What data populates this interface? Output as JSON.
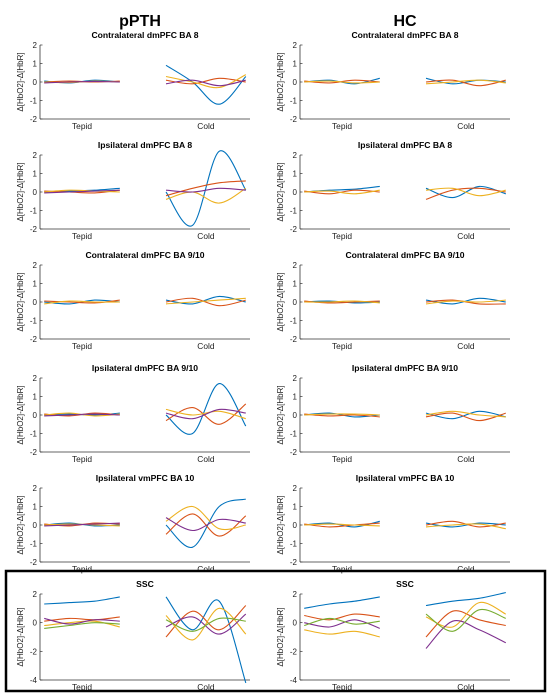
{
  "figure": {
    "column_titles": [
      "pPTH",
      "HC"
    ],
    "highlight_box_rows": [
      5
    ],
    "series_colors": [
      "#0072BD",
      "#D95319",
      "#EDB120",
      "#7E2F8E",
      "#77AC30",
      "#4DBEEE",
      "#A2142F",
      "#1fb59a"
    ]
  },
  "chart_data": [
    {
      "type": "line",
      "title": "Contralateral dmPFC BA 8",
      "ylabel": "Δ[HbO2]-Δ[HbR]",
      "categories": [
        "Tepid",
        "Cold"
      ],
      "ylim": [
        -2,
        2
      ],
      "yticks": [
        -2,
        -1,
        0,
        1,
        2
      ],
      "grid": false,
      "series": [
        {
          "values": {
            "Tepid": [
              0.05,
              -0.05,
              0.1,
              0.0
            ],
            "Cold": [
              0.9,
              0.0,
              -1.2,
              0.3
            ]
          }
        },
        {
          "values": {
            "Tepid": [
              0.0,
              0.05,
              0.0,
              0.05
            ],
            "Cold": [
              0.1,
              -0.1,
              0.2,
              0.0
            ]
          }
        },
        {
          "values": {
            "Tepid": [
              0.0,
              -0.03,
              0.05,
              0.0
            ],
            "Cold": [
              0.3,
              0.0,
              -0.3,
              0.4
            ]
          }
        },
        {
          "values": {
            "Tepid": [
              -0.05,
              0.0,
              0.03,
              0.0
            ],
            "Cold": [
              -0.1,
              0.1,
              -0.2,
              0.1
            ]
          }
        }
      ]
    },
    {
      "type": "line",
      "title": "Contralateral dmPFC BA 8",
      "ylabel": "Δ[HbO2]-Δ[HbR]",
      "categories": [
        "Tepid",
        "Cold"
      ],
      "ylim": [
        -2,
        2
      ],
      "yticks": [
        -2,
        -1,
        0,
        1,
        2
      ],
      "grid": false,
      "series": [
        {
          "values": {
            "Tepid": [
              0.0,
              0.1,
              -0.1,
              0.2
            ],
            "Cold": [
              0.2,
              -0.1,
              0.1,
              0.0
            ]
          }
        },
        {
          "values": {
            "Tepid": [
              0.05,
              -0.05,
              0.1,
              0.0
            ],
            "Cold": [
              0.0,
              0.1,
              -0.2,
              0.1
            ]
          }
        },
        {
          "values": {
            "Tepid": [
              0.0,
              0.05,
              -0.05,
              0.0
            ],
            "Cold": [
              -0.1,
              0.0,
              0.1,
              -0.05
            ]
          }
        }
      ]
    },
    {
      "type": "line",
      "title": "Ipsilateral dmPFC BA 8",
      "ylabel": "Δ[HbO2]-Δ[HbR]",
      "categories": [
        "Tepid",
        "Cold"
      ],
      "ylim": [
        -2,
        2
      ],
      "yticks": [
        -2,
        -1,
        0,
        1,
        2
      ],
      "grid": false,
      "series": [
        {
          "values": {
            "Tepid": [
              0.0,
              0.05,
              0.1,
              0.2
            ],
            "Cold": [
              0.0,
              -1.8,
              2.2,
              0.1
            ]
          }
        },
        {
          "values": {
            "Tepid": [
              0.05,
              0.0,
              -0.05,
              0.1
            ],
            "Cold": [
              -0.2,
              0.2,
              0.5,
              0.6
            ]
          }
        },
        {
          "values": {
            "Tepid": [
              0.0,
              0.1,
              0.05,
              0.0
            ],
            "Cold": [
              -0.4,
              0.0,
              -0.6,
              0.2
            ]
          }
        },
        {
          "values": {
            "Tepid": [
              -0.05,
              0.0,
              0.05,
              0.1
            ],
            "Cold": [
              0.1,
              0.0,
              0.2,
              0.1
            ]
          }
        }
      ]
    },
    {
      "type": "line",
      "title": "Ipsilateral dmPFC BA 8",
      "ylabel": "Δ[HbO2]-Δ[HbR]",
      "categories": [
        "Tepid",
        "Cold"
      ],
      "ylim": [
        -2,
        2
      ],
      "yticks": [
        -2,
        -1,
        0,
        1,
        2
      ],
      "grid": false,
      "series": [
        {
          "values": {
            "Tepid": [
              0.0,
              0.1,
              0.15,
              0.3
            ],
            "Cold": [
              0.2,
              -0.3,
              0.3,
              -0.1
            ]
          }
        },
        {
          "values": {
            "Tepid": [
              0.05,
              -0.1,
              0.1,
              0.0
            ],
            "Cold": [
              -0.4,
              0.1,
              0.2,
              0.0
            ]
          }
        },
        {
          "values": {
            "Tepid": [
              0.0,
              0.05,
              -0.1,
              0.1
            ],
            "Cold": [
              0.1,
              0.2,
              -0.2,
              0.1
            ]
          }
        }
      ]
    },
    {
      "type": "line",
      "title": "Contralateral dmPFC BA 9/10",
      "ylabel": "Δ[HbO2]-Δ[HbR]",
      "categories": [
        "Tepid",
        "Cold"
      ],
      "ylim": [
        -2,
        2
      ],
      "yticks": [
        -2,
        -1,
        0,
        1,
        2
      ],
      "grid": false,
      "series": [
        {
          "values": {
            "Tepid": [
              0.0,
              -0.1,
              0.1,
              0.0
            ],
            "Cold": [
              0.1,
              -0.1,
              0.3,
              0.0
            ]
          }
        },
        {
          "values": {
            "Tepid": [
              0.05,
              0.0,
              -0.05,
              0.1
            ],
            "Cold": [
              0.0,
              0.2,
              -0.2,
              0.1
            ]
          }
        },
        {
          "values": {
            "Tepid": [
              -0.1,
              0.05,
              0.0,
              0.0
            ],
            "Cold": [
              -0.1,
              0.0,
              0.1,
              0.2
            ]
          }
        }
      ]
    },
    {
      "type": "line",
      "title": "Contralateral dmPFC BA 9/10",
      "ylabel": "Δ[HbO2]-Δ[HbR]",
      "categories": [
        "Tepid",
        "Cold"
      ],
      "ylim": [
        -2,
        2
      ],
      "yticks": [
        -2,
        -1,
        0,
        1,
        2
      ],
      "grid": false,
      "series": [
        {
          "values": {
            "Tepid": [
              0.0,
              0.05,
              -0.05,
              0.0
            ],
            "Cold": [
              0.1,
              -0.1,
              0.2,
              0.0
            ]
          }
        },
        {
          "values": {
            "Tepid": [
              0.05,
              -0.05,
              0.0,
              0.05
            ],
            "Cold": [
              0.0,
              0.1,
              -0.1,
              -0.1
            ]
          }
        },
        {
          "values": {
            "Tepid": [
              0.0,
              0.0,
              0.05,
              -0.05
            ],
            "Cold": [
              -0.1,
              0.05,
              0.0,
              0.1
            ]
          }
        }
      ]
    },
    {
      "type": "line",
      "title": "Ipsilateral dmPFC BA 9/10",
      "ylabel": "Δ[HbO2]-Δ[HbR]",
      "categories": [
        "Tepid",
        "Cold"
      ],
      "ylim": [
        -2,
        2
      ],
      "yticks": [
        -2,
        -1,
        0,
        1,
        2
      ],
      "grid": false,
      "series": [
        {
          "values": {
            "Tepid": [
              0.0,
              0.05,
              0.0,
              0.1
            ],
            "Cold": [
              0.0,
              -1.0,
              1.7,
              -0.6
            ]
          }
        },
        {
          "values": {
            "Tepid": [
              0.05,
              -0.05,
              0.1,
              0.0
            ],
            "Cold": [
              -0.3,
              0.4,
              -0.5,
              0.6
            ]
          }
        },
        {
          "values": {
            "Tepid": [
              0.0,
              0.1,
              -0.05,
              0.05
            ],
            "Cold": [
              0.3,
              0.0,
              0.2,
              -0.2
            ]
          }
        },
        {
          "values": {
            "Tepid": [
              -0.05,
              0.0,
              0.05,
              0.0
            ],
            "Cold": [
              0.1,
              -0.2,
              0.3,
              0.1
            ]
          }
        }
      ]
    },
    {
      "type": "line",
      "title": "Ipsilateral dmPFC BA 9/10",
      "ylabel": "Δ[HbO2]-Δ[HbR]",
      "categories": [
        "Tepid",
        "Cold"
      ],
      "ylim": [
        -2,
        2
      ],
      "yticks": [
        -2,
        -1,
        0,
        1,
        2
      ],
      "grid": false,
      "series": [
        {
          "values": {
            "Tepid": [
              0.0,
              0.1,
              -0.1,
              0.0
            ],
            "Cold": [
              0.1,
              -0.2,
              0.2,
              -0.1
            ]
          }
        },
        {
          "values": {
            "Tepid": [
              0.05,
              -0.05,
              0.0,
              -0.1
            ],
            "Cold": [
              -0.1,
              0.1,
              -0.3,
              0.1
            ]
          }
        },
        {
          "values": {
            "Tepid": [
              0.0,
              0.05,
              0.05,
              0.0
            ],
            "Cold": [
              0.0,
              0.2,
              0.0,
              -0.1
            ]
          }
        }
      ]
    },
    {
      "type": "line",
      "title": "Ipsilateral vmPFC BA 10",
      "ylabel": "Δ[HbO2]-Δ[HbR]",
      "categories": [
        "Tepid",
        "Cold"
      ],
      "ylim": [
        -2,
        2
      ],
      "yticks": [
        -2,
        -1,
        0,
        1,
        2
      ],
      "grid": false,
      "series": [
        {
          "values": {
            "Tepid": [
              0.0,
              0.1,
              -0.05,
              0.0
            ],
            "Cold": [
              0.0,
              -1.2,
              1.0,
              1.4
            ]
          }
        },
        {
          "values": {
            "Tepid": [
              0.05,
              -0.05,
              0.1,
              0.05
            ],
            "Cold": [
              -0.5,
              0.6,
              -0.6,
              0.5
            ]
          }
        },
        {
          "values": {
            "Tepid": [
              0.0,
              0.05,
              0.0,
              -0.05
            ],
            "Cold": [
              0.2,
              1.0,
              -0.2,
              0.0
            ]
          }
        },
        {
          "values": {
            "Tepid": [
              -0.05,
              0.0,
              0.05,
              0.1
            ],
            "Cold": [
              0.4,
              -0.3,
              0.3,
              0.1
            ]
          }
        }
      ]
    },
    {
      "type": "line",
      "title": "Ipsilateral vmPFC BA 10",
      "ylabel": "Δ[HbO2]-Δ[HbR]",
      "categories": [
        "Tepid",
        "Cold"
      ],
      "ylim": [
        -2,
        2
      ],
      "yticks": [
        -2,
        -1,
        0,
        1,
        2
      ],
      "grid": false,
      "series": [
        {
          "values": {
            "Tepid": [
              0.0,
              0.1,
              -0.1,
              0.2
            ],
            "Cold": [
              0.1,
              -0.1,
              0.1,
              0.0
            ]
          }
        },
        {
          "values": {
            "Tepid": [
              0.05,
              -0.1,
              0.0,
              0.1
            ],
            "Cold": [
              0.0,
              0.2,
              -0.1,
              0.1
            ]
          }
        },
        {
          "values": {
            "Tepid": [
              0.0,
              0.05,
              0.0,
              -0.05
            ],
            "Cold": [
              -0.1,
              0.0,
              0.05,
              -0.2
            ]
          }
        }
      ]
    },
    {
      "type": "line",
      "title": "SSC",
      "ylabel": "Δ[HbO2]-Δ[HbR]",
      "categories": [
        "Tepid",
        "Cold"
      ],
      "ylim": [
        -4,
        2
      ],
      "yticks": [
        -4,
        -2,
        0,
        2
      ],
      "grid": false,
      "series": [
        {
          "values": {
            "Tepid": [
              1.3,
              1.4,
              1.5,
              1.8
            ],
            "Cold": [
              1.8,
              -0.5,
              1.5,
              -4.2
            ]
          }
        },
        {
          "values": {
            "Tepid": [
              0.1,
              0.3,
              0.2,
              0.4
            ],
            "Cold": [
              -1.0,
              0.8,
              -0.5,
              1.2
            ]
          }
        },
        {
          "values": {
            "Tepid": [
              -0.2,
              0.0,
              0.1,
              -0.3
            ],
            "Cold": [
              0.5,
              -1.2,
              1.0,
              -0.8
            ]
          }
        },
        {
          "values": {
            "Tepid": [
              0.3,
              -0.1,
              0.2,
              0.1
            ],
            "Cold": [
              -0.3,
              0.4,
              -0.8,
              0.6
            ]
          }
        },
        {
          "values": {
            "Tepid": [
              -0.4,
              -0.2,
              0.0,
              -0.1
            ],
            "Cold": [
              0.2,
              -0.6,
              0.3,
              0.1
            ]
          }
        }
      ]
    },
    {
      "type": "line",
      "title": "SSC",
      "ylabel": "Δ[HbO2]-Δ[HbR]",
      "categories": [
        "Tepid",
        "Cold"
      ],
      "ylim": [
        -4,
        2
      ],
      "yticks": [
        -4,
        -2,
        0,
        2
      ],
      "grid": false,
      "series": [
        {
          "values": {
            "Tepid": [
              1.0,
              1.3,
              1.5,
              1.8
            ],
            "Cold": [
              1.2,
              1.5,
              1.7,
              2.1
            ]
          }
        },
        {
          "values": {
            "Tepid": [
              0.5,
              0.2,
              0.6,
              0.4
            ],
            "Cold": [
              -1.0,
              0.8,
              0.2,
              -0.2
            ]
          }
        },
        {
          "values": {
            "Tepid": [
              -0.5,
              -0.8,
              -0.6,
              -1.0
            ],
            "Cold": [
              0.4,
              -0.3,
              1.4,
              0.6
            ]
          }
        },
        {
          "values": {
            "Tepid": [
              0.0,
              -0.3,
              0.2,
              -0.4
            ],
            "Cold": [
              -1.8,
              0.1,
              -0.5,
              -1.4
            ]
          }
        },
        {
          "values": {
            "Tepid": [
              -0.2,
              0.3,
              -0.1,
              0.1
            ],
            "Cold": [
              0.6,
              -0.6,
              0.9,
              0.3
            ]
          }
        }
      ]
    }
  ]
}
